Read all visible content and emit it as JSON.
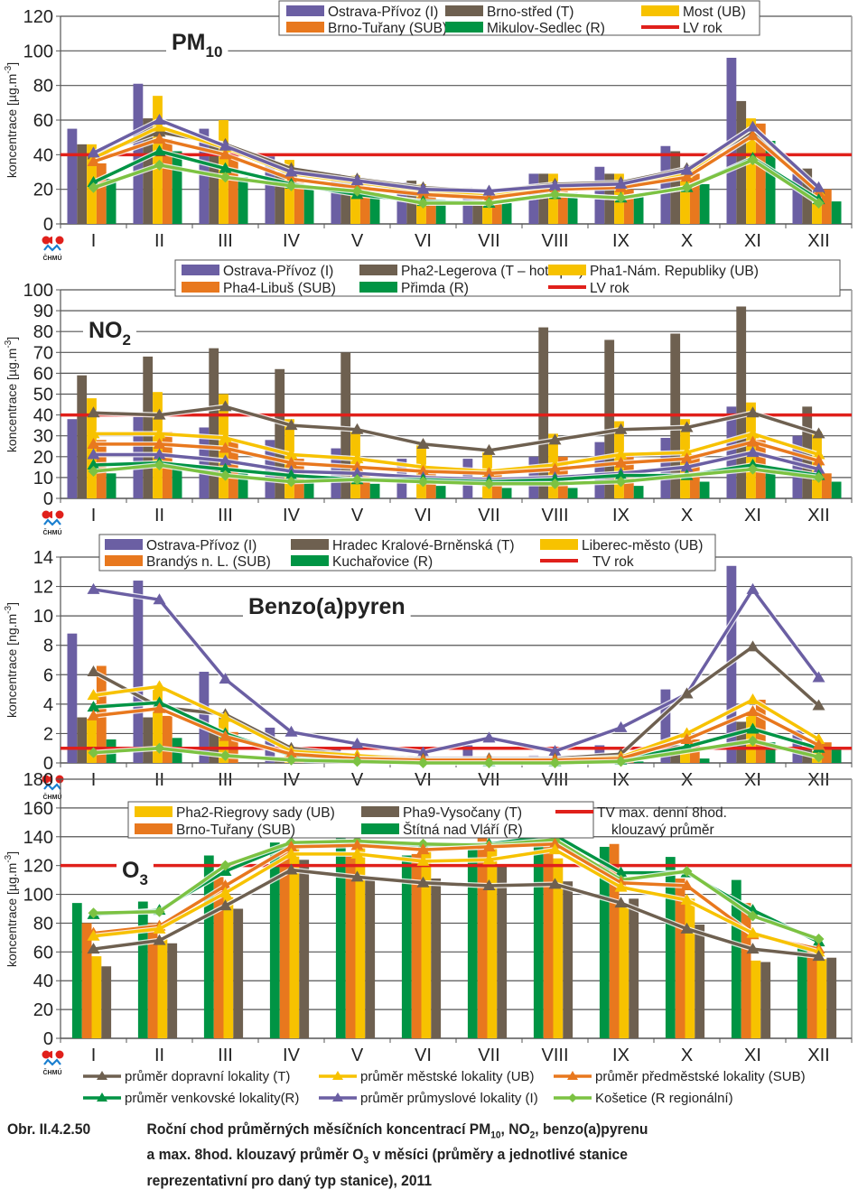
{
  "months": [
    "I",
    "II",
    "III",
    "IV",
    "V",
    "VI",
    "VII",
    "VIII",
    "IX",
    "X",
    "XI",
    "XII"
  ],
  "logo_label": "ČHMÚ",
  "colors": {
    "industrial": "#6b5fa3",
    "traffic": "#6e6050",
    "urban": "#f7c200",
    "suburban": "#e8781e",
    "rural": "#009444",
    "kosetice": "#7cc242",
    "limit": "#e0201b"
  },
  "chart_data": [
    {
      "type": "bar",
      "id": "pm10",
      "title": "PM",
      "title_sub": "10",
      "ylabel": "koncentrace [µg.m",
      "ylabel_sup": "-3",
      "ylabel_end": "]",
      "ylim": [
        0,
        120
      ],
      "yticks": [
        0,
        20,
        40,
        60,
        80,
        100,
        120
      ],
      "categories": [
        "I",
        "II",
        "III",
        "IV",
        "V",
        "VI",
        "VII",
        "VIII",
        "IX",
        "X",
        "XI",
        "XII"
      ],
      "limit": {
        "name": "LV rok",
        "value": 40
      },
      "series": [
        {
          "name": "Ostrava-Přívoz (I)",
          "color_key": "industrial",
          "values": [
            55,
            81,
            55,
            39,
            29,
            24,
            21,
            29,
            33,
            45,
            96,
            29
          ]
        },
        {
          "name": "Brno-střed (T)",
          "color_key": "traffic",
          "values": [
            46,
            61,
            48,
            30,
            27,
            25,
            20,
            29,
            29,
            42,
            71,
            32
          ]
        },
        {
          "name": "Most (UB)",
          "color_key": "urban",
          "values": [
            46,
            74,
            60,
            37,
            28,
            23,
            15,
            29,
            29,
            27,
            61,
            12
          ]
        },
        {
          "name": "Brno-Tuřany (SUB)",
          "color_key": "suburban",
          "values": [
            35,
            49,
            40,
            25,
            23,
            17,
            15,
            20,
            20,
            29,
            58,
            20
          ]
        },
        {
          "name": "Mikulov-Sedlec (R)",
          "color_key": "rural",
          "values": [
            26,
            42,
            27,
            21,
            18,
            14,
            12,
            18,
            16,
            23,
            48,
            13
          ]
        }
      ],
      "lines": [
        {
          "key": "traffic",
          "values": [
            40,
            53,
            46,
            32,
            26,
            21,
            19,
            23,
            24,
            32,
            53,
            20
          ]
        },
        {
          "key": "urban",
          "values": [
            38,
            56,
            44,
            29,
            24,
            19,
            16,
            21,
            22,
            29,
            56,
            19
          ]
        },
        {
          "key": "suburban",
          "values": [
            36,
            49,
            40,
            26,
            21,
            17,
            15,
            20,
            21,
            27,
            51,
            18
          ]
        },
        {
          "key": "rural",
          "values": [
            24,
            42,
            32,
            23,
            17,
            13,
            12,
            17,
            15,
            21,
            38,
            14
          ]
        },
        {
          "key": "industrial",
          "values": [
            41,
            60,
            45,
            30,
            25,
            20,
            19,
            22,
            23,
            31,
            56,
            21
          ]
        },
        {
          "key": "kosetice",
          "values": [
            21,
            34,
            27,
            22,
            19,
            12,
            12,
            17,
            15,
            21,
            37,
            12
          ]
        }
      ]
    },
    {
      "type": "bar",
      "id": "no2",
      "title": "NO",
      "title_sub": "2",
      "ylabel": "koncentrace [µg.m",
      "ylabel_sup": "-3",
      "ylabel_end": "]",
      "ylim": [
        0,
        100
      ],
      "yticks": [
        0,
        10,
        20,
        30,
        40,
        50,
        60,
        70,
        80,
        90,
        100
      ],
      "categories": [
        "I",
        "II",
        "III",
        "IV",
        "V",
        "VI",
        "VII",
        "VIII",
        "IX",
        "X",
        "XI",
        "XII"
      ],
      "limit": {
        "name": "LV rok",
        "value": 40
      },
      "series": [
        {
          "name": "Ostrava-Přívoz (I)",
          "color_key": "industrial",
          "values": [
            38,
            39,
            34,
            28,
            24,
            19,
            19,
            20,
            27,
            29,
            44,
            30
          ]
        },
        {
          "name": "Pha2-Legerova (T – hot spot)",
          "color_key": "traffic",
          "values": [
            59,
            68,
            72,
            62,
            70,
            0,
            0,
            82,
            76,
            79,
            92,
            44
          ]
        },
        {
          "name": "Pha1-Nám. Republiky (UB)",
          "color_key": "urban",
          "values": [
            48,
            51,
            50,
            38,
            32,
            26,
            23,
            31,
            37,
            38,
            46,
            32
          ]
        },
        {
          "name": "Pha4-Libuš (SUB)",
          "color_key": "suburban",
          "values": [
            28,
            32,
            27,
            19,
            12,
            13,
            13,
            20,
            22,
            21,
            28,
            12
          ]
        },
        {
          "name": "Přimda (R)",
          "color_key": "rural",
          "values": [
            12,
            15,
            12,
            8,
            7,
            6,
            5,
            5,
            6,
            8,
            13,
            8
          ]
        }
      ],
      "lines": [
        {
          "key": "traffic",
          "values": [
            41,
            40,
            44,
            35,
            33,
            26,
            23,
            28,
            33,
            34,
            41,
            31
          ]
        },
        {
          "key": "urban",
          "values": [
            31,
            31,
            29,
            21,
            19,
            15,
            13,
            16,
            21,
            22,
            31,
            21
          ]
        },
        {
          "key": "suburban",
          "values": [
            26,
            26,
            24,
            17,
            15,
            13,
            12,
            14,
            17,
            19,
            27,
            18
          ]
        },
        {
          "key": "industrial",
          "values": [
            21,
            21,
            18,
            13,
            12,
            10,
            9,
            10,
            12,
            15,
            22,
            14
          ]
        },
        {
          "key": "rural",
          "values": [
            16,
            17,
            14,
            11,
            9,
            9,
            8,
            9,
            11,
            11,
            16,
            11
          ]
        },
        {
          "key": "kosetice",
          "values": [
            13,
            16,
            11,
            8,
            9,
            8,
            7,
            7,
            8,
            0,
            14,
            10
          ]
        }
      ]
    },
    {
      "type": "bar",
      "id": "bap",
      "title": "Benzo(a)pyren",
      "title_sub": "",
      "ylabel": "koncentrace [ng.m",
      "ylabel_sup": "-3",
      "ylabel_end": "]",
      "ylim": [
        0,
        14
      ],
      "yticks": [
        0,
        2,
        4,
        6,
        8,
        10,
        12,
        14
      ],
      "categories": [
        "I",
        "II",
        "III",
        "IV",
        "V",
        "VI",
        "VII",
        "VIII",
        "IX",
        "X",
        "XI",
        "XII"
      ],
      "limit": {
        "name": "TV rok",
        "value": 1
      },
      "series": [
        {
          "name": "Ostrava-Přívoz (I)",
          "color_key": "industrial",
          "values": [
            8.8,
            12.4,
            6.2,
            2.4,
            0.9,
            0.4,
            1.2,
            0.5,
            1.2,
            5.0,
            13.4,
            2.2
          ]
        },
        {
          "name": "Hradec Kralové-Brněnská (T)",
          "color_key": "traffic",
          "values": [
            3.1,
            3.1,
            2.1,
            0.4,
            0.2,
            0.1,
            0.1,
            0.1,
            0.2,
            1.2,
            2.8,
            0.9
          ]
        },
        {
          "name": "Liberec-město (UB)",
          "color_key": "urban",
          "values": [
            3.0,
            5.0,
            3.4,
            0.5,
            0.3,
            0.1,
            0.1,
            0.1,
            0.3,
            1.0,
            3.5,
            0.8
          ]
        },
        {
          "name": "Brandýs n. L. (SUB)",
          "color_key": "suburban",
          "values": [
            6.6,
            3.2,
            2.1,
            0.6,
            0.2,
            0.1,
            0.1,
            0.1,
            0.2,
            1.6,
            4.3,
            1.4
          ]
        },
        {
          "name": "Kuchařovice (R)",
          "color_key": "rural",
          "values": [
            1.6,
            1.7,
            0.0,
            0.2,
            0.1,
            0.0,
            0.0,
            0.0,
            0.1,
            0.3,
            1.4,
            0.9
          ]
        }
      ],
      "lines": [
        {
          "key": "industrial",
          "values": [
            11.8,
            11.1,
            5.7,
            2.1,
            1.3,
            0.7,
            1.7,
            0.8,
            2.4,
            4.7,
            11.8,
            5.8
          ]
        },
        {
          "key": "traffic",
          "values": [
            6.2,
            3.8,
            3.3,
            1.0,
            0.5,
            0.3,
            0.3,
            0.3,
            0.6,
            4.7,
            7.9,
            3.9
          ]
        },
        {
          "key": "urban",
          "values": [
            4.6,
            5.2,
            3.1,
            0.8,
            0.5,
            0.2,
            0.2,
            0.2,
            0.4,
            2.0,
            4.3,
            1.6
          ]
        },
        {
          "key": "rural",
          "values": [
            3.8,
            4.1,
            2.0,
            0.5,
            0.3,
            0.2,
            0.1,
            0.1,
            0.2,
            1.1,
            2.3,
            1.0
          ]
        },
        {
          "key": "suburban",
          "values": [
            3.2,
            3.7,
            1.8,
            0.6,
            0.3,
            0.2,
            0.2,
            0.2,
            0.3,
            1.6,
            3.5,
            1.2
          ]
        },
        {
          "key": "kosetice",
          "values": [
            0.7,
            1.0,
            0.5,
            0.2,
            0.1,
            0.0,
            0.0,
            0.0,
            0.1,
            null,
            1.5,
            0.4
          ]
        }
      ]
    },
    {
      "type": "bar",
      "id": "o3",
      "title": "O",
      "title_sub": "3",
      "ylabel": "koncentrace [µg.m",
      "ylabel_sup": "-3",
      "ylabel_end": "]",
      "ylim": [
        0,
        180
      ],
      "yticks": [
        0,
        20,
        40,
        60,
        80,
        100,
        120,
        140,
        160,
        180
      ],
      "categories": [
        "I",
        "II",
        "III",
        "IV",
        "V",
        "VI",
        "VII",
        "VIII",
        "IX",
        "X",
        "XI",
        "XII"
      ],
      "limit": {
        "name": "TV max. denní 8hod. klouzavý průměr",
        "name_line1": "TV max. denní 8hod.",
        "name_line2": "klouzavý průměr",
        "value": 120
      },
      "series": [
        {
          "name": "Štítná nad Vláří (R)",
          "color_key": "rural",
          "values": [
            94,
            95,
            127,
            136,
            140,
            127,
            131,
            149,
            133,
            126,
            110,
            63
          ]
        },
        {
          "name": "Brno-Tuřany (SUB)",
          "color_key": "suburban",
          "values": [
            80,
            80,
            112,
            135,
            129,
            128,
            141,
            157,
            135,
            111,
            94,
            62
          ]
        },
        {
          "name": "Pha2-Riegrovy sady (UB)",
          "color_key": "urban",
          "values": [
            57,
            69,
            98,
            135,
            137,
            132,
            136,
            125,
            93,
            97,
            54,
            55
          ]
        },
        {
          "name": "Pha9-Vysočany (T)",
          "color_key": "traffic",
          "values": [
            50,
            66,
            90,
            124,
            111,
            111,
            120,
            109,
            97,
            79,
            53,
            56
          ]
        }
      ],
      "lines": [
        {
          "key": "rural",
          "values": [
            86,
            89,
            116,
            135,
            136,
            134,
            135,
            141,
            115,
            115,
            89,
            67
          ]
        },
        {
          "key": "kosetice",
          "values": [
            87,
            88,
            120,
            136,
            137,
            135,
            134,
            138,
            110,
            116,
            85,
            69
          ]
        },
        {
          "key": "suburban",
          "values": [
            73,
            78,
            106,
            133,
            134,
            131,
            133,
            135,
            108,
            106,
            72,
            62
          ]
        },
        {
          "key": "urban",
          "values": [
            71,
            76,
            101,
            128,
            128,
            123,
            124,
            131,
            105,
            96,
            73,
            60
          ]
        },
        {
          "key": "traffic",
          "values": [
            62,
            68,
            92,
            117,
            112,
            108,
            106,
            107,
            94,
            76,
            62,
            57
          ]
        }
      ]
    }
  ],
  "line_legend": [
    {
      "label": "průměr dopravní lokality (T)",
      "key": "traffic"
    },
    {
      "label": "průměr městské lokality (UB)",
      "key": "urban"
    },
    {
      "label": "průměr předměstské lokality (SUB)",
      "key": "suburban"
    },
    {
      "label": "průměr venkovské lokality(R)",
      "key": "rural"
    },
    {
      "label": "průměr průmyslové lokality (I)",
      "key": "industrial"
    },
    {
      "label": "Košetice (R regionální)",
      "key": "kosetice"
    }
  ],
  "caption": {
    "number": "Obr. II.4.2.50",
    "line1_a": "Roční chod průměrných měsíčních koncentrací PM",
    "line1_sub1": "10",
    "line1_b": ", NO",
    "line1_sub2": "2",
    "line1_c": ", benzo(a)pyrenu",
    "line2_a": "a max. 8hod. klouzavý průměr O",
    "line2_sub": "3",
    "line2_b": " v měsíci (průměry a jednotlivé stanice",
    "line3": "reprezentativní pro daný typ stanice), 2011"
  }
}
